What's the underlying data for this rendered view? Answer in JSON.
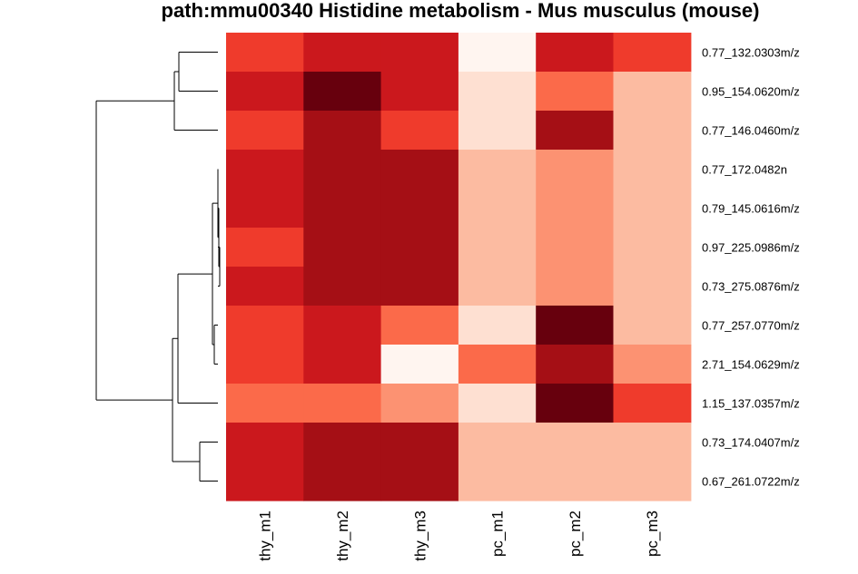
{
  "chart_data": {
    "type": "heatmap",
    "title": "path:mmu00340  Histidine metabolism - Mus musculus (mouse)",
    "columns": [
      "thy_m1",
      "thy_m2",
      "thy_m3",
      "pc_m1",
      "pc_m2",
      "pc_m3"
    ],
    "rows": [
      "0.77_132.0303m/z",
      "0.95_154.0620m/z",
      "0.77_146.0460m/z",
      "0.77_172.0482n",
      "0.79_145.0616m/z",
      "0.97_225.0986m/z",
      "0.73_275.0876m/z",
      "0.77_257.0770m/z",
      "2.71_154.0629m/z",
      "1.15_137.0357m/z",
      "0.73_174.0407m/z",
      "0.67_261.0722m/z"
    ],
    "color_levels": 8,
    "palette": [
      "#fff5f0",
      "#fee0d2",
      "#fcbba1",
      "#fc9272",
      "#fb6a4a",
      "#ef3b2c",
      "#cb181d",
      "#a50f15",
      "#67000d"
    ],
    "values": [
      [
        5,
        6,
        6,
        0,
        6,
        5
      ],
      [
        6,
        8,
        6,
        1,
        4,
        2
      ],
      [
        5,
        7,
        5,
        1,
        7,
        2
      ],
      [
        6,
        7,
        7,
        2,
        3,
        2
      ],
      [
        6,
        7,
        7,
        2,
        3,
        2
      ],
      [
        5,
        7,
        7,
        2,
        3,
        2
      ],
      [
        6,
        7,
        7,
        2,
        3,
        2
      ],
      [
        5,
        6,
        4,
        1,
        8,
        2
      ],
      [
        5,
        6,
        0,
        4,
        7,
        3
      ],
      [
        4,
        4,
        3,
        1,
        8,
        5
      ],
      [
        6,
        7,
        7,
        2,
        2,
        2
      ],
      [
        6,
        7,
        7,
        2,
        2,
        2
      ]
    ],
    "row_dendrogram": true,
    "legend": "none"
  }
}
